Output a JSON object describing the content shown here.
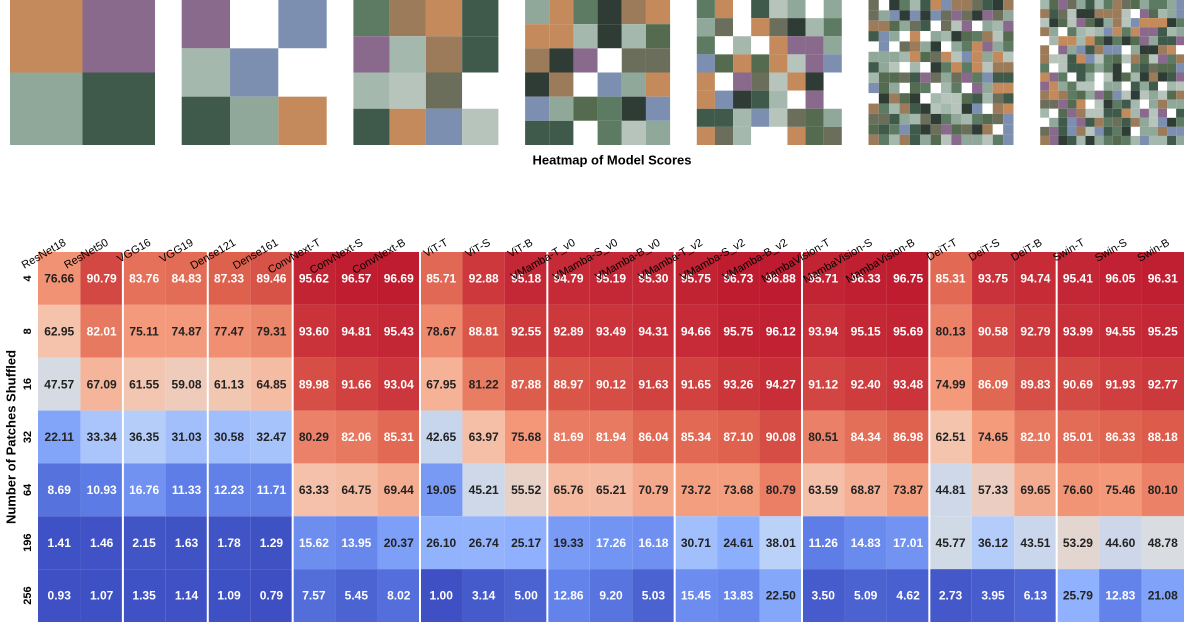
{
  "chart_data": {
    "type": "heatmap",
    "title": "Heatmap of Model Scores",
    "y_label": "Number of Patches Shuffled",
    "columns": [
      "ResNet18",
      "ResNet50",
      "VGG16",
      "VGG19",
      "Dense121",
      "Dense161",
      "ConvNext-T",
      "ConvNext-S",
      "ConvNext-B",
      "ViT-T",
      "ViT-S",
      "ViT-B",
      "VMamba-T_v0",
      "VMamba-S_v0",
      "VMamba-B_v0",
      "VMamba-T_v2",
      "VMamba-S_v2",
      "VMamba-B_v2",
      "MambaVision-T",
      "MambaVision-S",
      "MambaVision-B",
      "DeiT-T",
      "DeiT-S",
      "DeiT-B",
      "Swin-T",
      "Swin-S",
      "Swin-B"
    ],
    "rows": [
      "4",
      "8",
      "16",
      "32",
      "64",
      "196",
      "256"
    ],
    "colormap": "coolwarm",
    "clim": [
      0,
      100
    ],
    "values": [
      [
        76.66,
        90.79,
        83.76,
        84.83,
        87.33,
        89.46,
        95.62,
        96.57,
        96.69,
        85.71,
        92.88,
        95.18,
        94.79,
        95.19,
        95.3,
        95.75,
        96.73,
        96.88,
        95.71,
        96.33,
        96.75,
        85.31,
        93.75,
        94.74,
        95.41,
        96.05,
        96.31
      ],
      [
        62.95,
        82.01,
        75.11,
        74.87,
        77.47,
        79.31,
        93.6,
        94.81,
        95.43,
        78.67,
        88.81,
        92.55,
        92.89,
        93.49,
        94.31,
        94.66,
        95.75,
        96.12,
        93.94,
        95.15,
        95.69,
        80.13,
        90.58,
        92.79,
        93.99,
        94.55,
        95.25
      ],
      [
        47.57,
        67.09,
        61.55,
        59.08,
        61.13,
        64.85,
        89.98,
        91.66,
        93.04,
        67.95,
        81.22,
        87.88,
        88.97,
        90.12,
        91.63,
        91.65,
        93.26,
        94.27,
        91.12,
        92.4,
        93.48,
        74.99,
        86.09,
        89.83,
        90.69,
        91.93,
        92.77
      ],
      [
        22.11,
        33.34,
        36.35,
        31.03,
        30.58,
        32.47,
        80.29,
        82.06,
        85.31,
        42.65,
        63.97,
        75.68,
        81.69,
        81.94,
        86.04,
        85.34,
        87.1,
        90.08,
        80.51,
        84.34,
        86.98,
        62.51,
        74.65,
        82.1,
        85.01,
        86.33,
        88.18
      ],
      [
        8.69,
        10.93,
        16.76,
        11.33,
        12.23,
        11.71,
        63.33,
        64.75,
        69.44,
        19.05,
        45.21,
        55.52,
        65.76,
        65.21,
        70.79,
        73.72,
        73.68,
        80.79,
        63.59,
        68.87,
        73.87,
        44.81,
        57.33,
        69.65,
        76.6,
        75.46,
        80.1
      ],
      [
        1.41,
        1.46,
        2.15,
        1.63,
        1.78,
        1.29,
        15.62,
        13.95,
        20.37,
        26.1,
        26.74,
        25.17,
        19.33,
        17.26,
        16.18,
        30.71,
        24.61,
        38.01,
        11.26,
        14.83,
        17.01,
        45.77,
        36.12,
        43.51,
        53.29,
        44.6,
        48.78
      ],
      [
        0.93,
        1.07,
        1.35,
        1.14,
        1.09,
        0.79,
        7.57,
        5.45,
        8.02,
        1.0,
        3.14,
        5.0,
        12.86,
        9.2,
        5.03,
        15.45,
        13.83,
        22.5,
        3.5,
        5.09,
        4.62,
        2.73,
        3.95,
        6.13,
        25.79,
        12.83,
        21.08
      ]
    ],
    "value_labels": [
      [
        "76.66",
        "90.79",
        "83.76",
        "84.83",
        "87.33",
        "89.46",
        "95.62",
        "96.57",
        "96.69",
        "85.71",
        "92.88",
        "95.18",
        "94.79",
        "95.19",
        "95.30",
        "95.75",
        "96.73",
        "96.88",
        "95.71",
        "96.33",
        "96.75",
        "85.31",
        "93.75",
        "94.74",
        "95.41",
        "96.05",
        "96.31"
      ],
      [
        "62.95",
        "82.01",
        "75.11",
        "74.87",
        "77.47",
        "79.31",
        "93.60",
        "94.81",
        "95.43",
        "78.67",
        "88.81",
        "92.55",
        "92.89",
        "93.49",
        "94.31",
        "94.66",
        "95.75",
        "96.12",
        "93.94",
        "95.15",
        "95.69",
        "80.13",
        "90.58",
        "92.79",
        "93.99",
        "94.55",
        "95.25"
      ],
      [
        "47.57",
        "67.09",
        "61.55",
        "59.08",
        "61.13",
        "64.85",
        "89.98",
        "91.66",
        "93.04",
        "67.95",
        "81.22",
        "87.88",
        "88.97",
        "90.12",
        "91.63",
        "91.65",
        "93.26",
        "94.27",
        "91.12",
        "92.40",
        "93.48",
        "74.99",
        "86.09",
        "89.83",
        "90.69",
        "91.93",
        "92.77"
      ],
      [
        "22.11",
        "33.34",
        "36.35",
        "31.03",
        "30.58",
        "32.47",
        "80.29",
        "82.06",
        "85.31",
        "42.65",
        "63.97",
        "75.68",
        "81.69",
        "81.94",
        "86.04",
        "85.34",
        "87.10",
        "90.08",
        "80.51",
        "84.34",
        "86.98",
        "62.51",
        "74.65",
        "82.10",
        "85.01",
        "86.33",
        "88.18"
      ],
      [
        "8.69",
        "10.93",
        "16.76",
        "11.33",
        "12.23",
        "11.71",
        "63.33",
        "64.75",
        "69.44",
        "19.05",
        "45.21",
        "55.52",
        "65.76",
        "65.21",
        "70.79",
        "73.72",
        "73.68",
        "80.79",
        "63.59",
        "68.87",
        "73.87",
        "44.81",
        "57.33",
        "69.65",
        "76.60",
        "75.46",
        "80.10"
      ],
      [
        "1.41",
        "1.46",
        "2.15",
        "1.63",
        "1.78",
        "1.29",
        "15.62",
        "13.95",
        "20.37",
        "26.10",
        "26.74",
        "25.17",
        "19.33",
        "17.26",
        "16.18",
        "30.71",
        "24.61",
        "38.01",
        "11.26",
        "14.83",
        "17.01",
        "45.77",
        "36.12",
        "43.51",
        "53.29",
        "44.60",
        "48.78"
      ],
      [
        "0.93",
        "1.07",
        "1.35",
        "1.14",
        "1.09",
        "0.79",
        "7.57",
        "5.45",
        "8.02",
        "1.00",
        "3.14",
        "5.00",
        "12.86",
        "9.20",
        "5.03",
        "15.45",
        "13.83",
        "22.50",
        "3.50",
        "5.09",
        "4.62",
        "2.73",
        "3.95",
        "6.13",
        "25.79",
        "12.83",
        "21.08"
      ]
    ]
  }
}
